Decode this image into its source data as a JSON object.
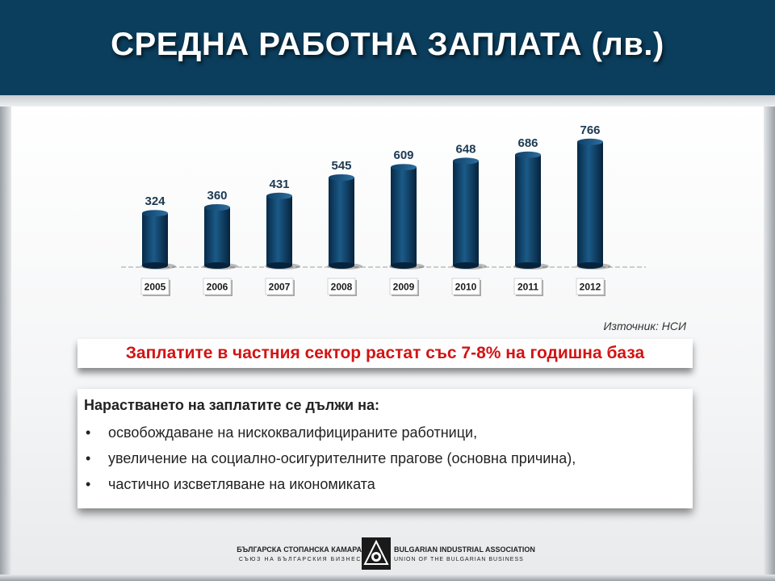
{
  "header": {
    "title": "СРЕДНА РАБОТНА ЗАПЛАТА (лв.)"
  },
  "chart_data": {
    "type": "bar",
    "title": "СРЕДНА РАБОТНА ЗАПЛАТА (лв.)",
    "categories": [
      "2005",
      "2006",
      "2007",
      "2008",
      "2009",
      "2010",
      "2011",
      "2012"
    ],
    "values": [
      324,
      360,
      431,
      545,
      609,
      648,
      686,
      766
    ],
    "xlabel": "",
    "ylabel": "",
    "ylim": [
      0,
      800
    ],
    "grid": false,
    "legend": "none",
    "bar_color": "#0d3a5e"
  },
  "source": "Източник: НСИ",
  "highlight": "Заплатите в частния сектор растат със 7-8% на годишна база",
  "highlight_color": "#d21414",
  "reasons": {
    "title": "Нарастването на заплатите се дължи на:",
    "bullet": "•",
    "items": [
      "освобождаване на нискоквалифицираните работници,",
      "увеличение на социално-осигурителните прагове (основна причина),",
      "частично изсветляване на икономиката"
    ]
  },
  "footer": {
    "left_line1": "БЪЛГАРСКА СТОПАНСКА КАМАРА",
    "left_line2": "СЪЮЗ НА БЪЛГАРСКИЯ БИЗНЕС",
    "right_line1": "BULGARIAN INDUSTRIAL ASSOCIATION",
    "right_line2": "UNION OF THE BULGARIAN BUSINESS"
  }
}
